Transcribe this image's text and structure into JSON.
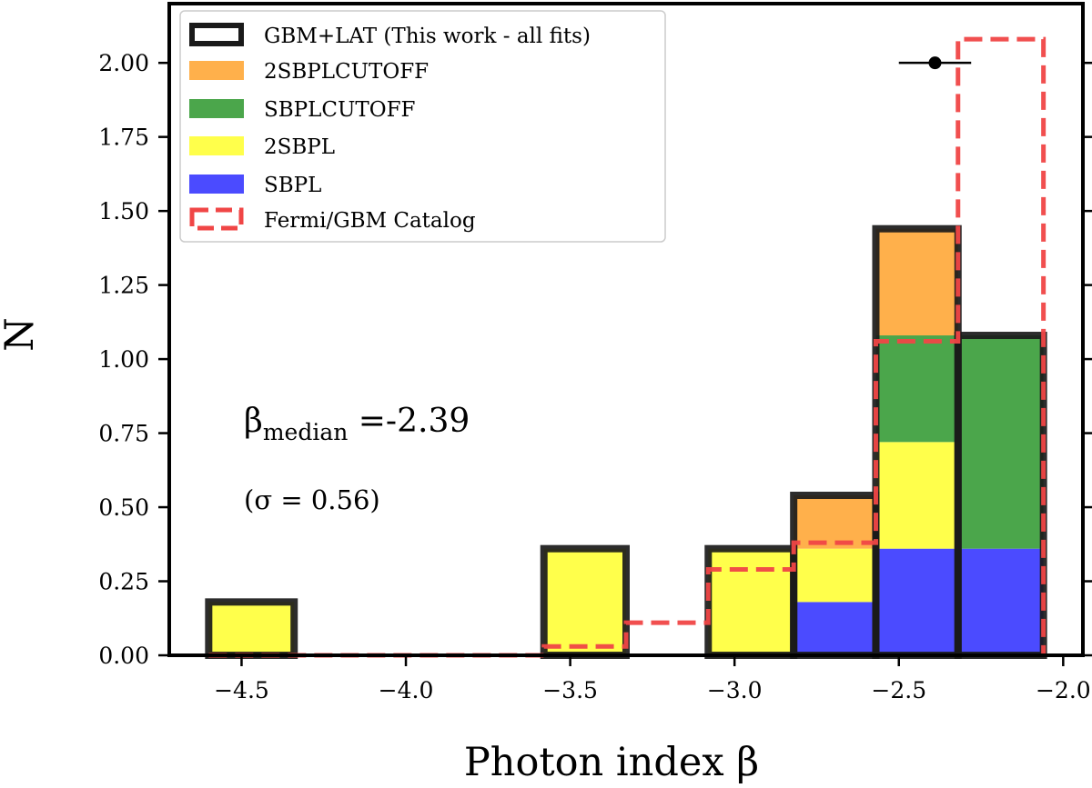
{
  "chart_data": {
    "type": "bar",
    "subtype": "stacked-histogram",
    "xlabel": "Photon index β",
    "ylabel": "N",
    "xlim": [
      -4.72,
      -1.94
    ],
    "ylim": [
      0.0,
      2.2
    ],
    "x_ticks": [
      -4.5,
      -4.0,
      -3.5,
      -3.0,
      -2.5,
      -2.0
    ],
    "x_tick_labels": [
      "−4.5",
      "−4.0",
      "−3.5",
      "−3.0",
      "−2.5",
      "−2.0"
    ],
    "y_ticks": [
      0.0,
      0.25,
      0.5,
      0.75,
      1.0,
      1.25,
      1.5,
      1.75,
      2.0
    ],
    "y_tick_labels": [
      "0.00",
      "0.25",
      "0.50",
      "0.75",
      "1.00",
      "1.25",
      "1.50",
      "1.75",
      "2.00"
    ],
    "bin_edges": [
      -4.6,
      -4.34,
      -4.08,
      -3.83,
      -3.58,
      -3.33,
      -3.08,
      -2.82,
      -2.57,
      -2.32,
      -2.06
    ],
    "series": [
      {
        "name": "SBPL",
        "color": "#4b4bff",
        "values": [
          0,
          0,
          0,
          0,
          0,
          0,
          0,
          0.18,
          0.36,
          0.36
        ]
      },
      {
        "name": "2SBPL",
        "color": "#ffff4b",
        "values": [
          0.18,
          0,
          0,
          0,
          0.36,
          0,
          0.36,
          0.18,
          0.36,
          0
        ]
      },
      {
        "name": "SBPLCUTOFF",
        "color": "#4ba64b",
        "values": [
          0,
          0,
          0,
          0,
          0,
          0,
          0,
          0,
          0.36,
          0.72
        ]
      },
      {
        "name": "2SBPLCUTOFF",
        "color": "#ffb04b",
        "values": [
          0,
          0,
          0,
          0,
          0,
          0,
          0,
          0.18,
          0.36,
          0
        ]
      }
    ],
    "total": {
      "name": "GBM+LAT (This work - all fits)",
      "color": "#1a1a1a",
      "values": [
        0.18,
        0,
        0,
        0,
        0.36,
        0,
        0.36,
        0.54,
        1.44,
        1.08
      ]
    },
    "catalog": {
      "name": "Fermi/GBM Catalog",
      "color": "#f04646",
      "bin_edges": [
        -4.6,
        -4.34,
        -4.08,
        -3.83,
        -3.58,
        -3.33,
        -3.08,
        -2.82,
        -2.57,
        -2.32,
        -2.06
      ],
      "values": [
        0,
        0,
        0,
        0,
        0.03,
        0.11,
        0.29,
        0.38,
        1.06,
        2.08
      ]
    },
    "error_point": {
      "x": -2.39,
      "y": 2.0,
      "xerr": 0.11
    },
    "legend": {
      "position": "upper-left",
      "entries": [
        "GBM+LAT (This work - all fits)",
        "2SBPLCUTOFF",
        "SBPLCUTOFF",
        "2SBPL",
        "SBPL",
        "Fermi/GBM Catalog"
      ]
    },
    "annotations": {
      "median_symbol": "β",
      "median_subscript": "median",
      "median_value": " =-2.39",
      "sigma": "(σ = 0.56)"
    }
  }
}
